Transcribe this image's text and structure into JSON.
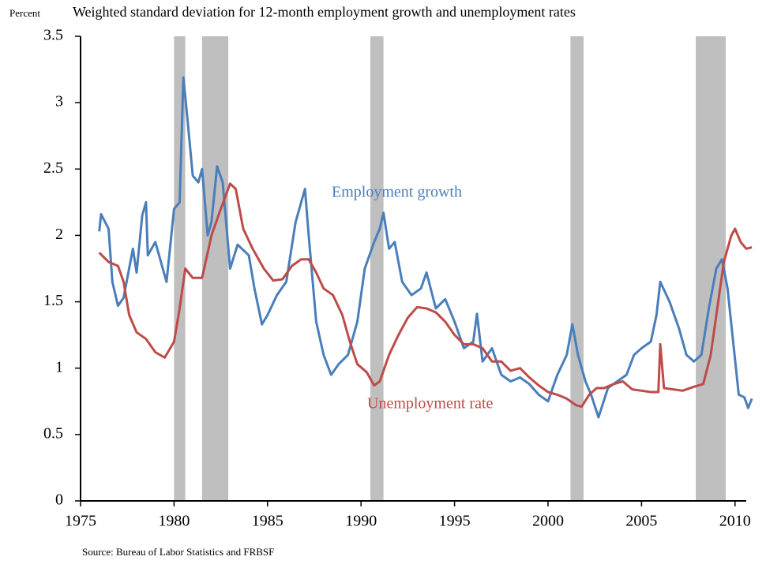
{
  "chart_data": {
    "type": "line",
    "title": "Weighted standard deviation for 12-month employment growth and unemployment rates",
    "y_label": "Percent",
    "source": "Source: Bureau of Labor Statistics and FRBSF",
    "xlim": [
      1975,
      2010.6
    ],
    "ylim": [
      0,
      3.5
    ],
    "xticks": [
      1975,
      1980,
      1985,
      1990,
      1995,
      2000,
      2005,
      2010
    ],
    "yticks": [
      0,
      0.5,
      1,
      1.5,
      2,
      2.5,
      3,
      3.5
    ],
    "shaded_color": "#bfbfbf",
    "shaded_periods": [
      [
        1980.0,
        1980.6
      ],
      [
        1981.5,
        1982.9
      ],
      [
        1990.5,
        1991.2
      ],
      [
        2001.2,
        2001.9
      ],
      [
        2007.9,
        2009.5
      ]
    ],
    "series": [
      {
        "name": "Employment growth",
        "color": "#4a7ebb",
        "x": [
          1976.0,
          1976.1,
          1976.5,
          1976.7,
          1977.0,
          1977.3,
          1977.8,
          1978.0,
          1978.3,
          1978.5,
          1978.6,
          1979.0,
          1979.3,
          1979.6,
          1980.0,
          1980.3,
          1980.5,
          1980.7,
          1981.0,
          1981.3,
          1981.5,
          1981.8,
          1982.0,
          1982.3,
          1982.6,
          1983.0,
          1983.4,
          1984.0,
          1984.3,
          1984.7,
          1985.0,
          1985.5,
          1986.0,
          1986.5,
          1987.0,
          1987.2,
          1987.6,
          1988.0,
          1988.4,
          1988.8,
          1989.3,
          1989.8,
          1990.2,
          1990.7,
          1991.0,
          1991.2,
          1991.5,
          1991.8,
          1992.2,
          1992.7,
          1993.2,
          1993.5,
          1994.0,
          1994.5,
          1995.0,
          1995.5,
          1996.0,
          1996.2,
          1996.5,
          1997.0,
          1997.5,
          1998.0,
          1998.5,
          1999.0,
          1999.5,
          2000.0,
          2000.5,
          2001.0,
          2001.3,
          2001.6,
          2002.0,
          2002.3,
          2002.7,
          2003.2,
          2003.7,
          2004.2,
          2004.6,
          2005.0,
          2005.5,
          2005.8,
          2006.0,
          2006.5,
          2007.0,
          2007.4,
          2007.8,
          2008.2,
          2008.6,
          2009.0,
          2009.3,
          2009.6,
          2009.9,
          2010.2,
          2010.5,
          2010.7,
          2010.9
        ],
        "values": [
          2.03,
          2.16,
          2.05,
          1.65,
          1.47,
          1.53,
          1.9,
          1.72,
          2.15,
          2.25,
          1.85,
          1.95,
          1.8,
          1.65,
          2.2,
          2.25,
          3.19,
          2.9,
          2.45,
          2.4,
          2.5,
          2.0,
          2.1,
          2.52,
          2.4,
          1.75,
          1.93,
          1.85,
          1.6,
          1.33,
          1.4,
          1.55,
          1.65,
          2.1,
          2.35,
          2.0,
          1.35,
          1.1,
          0.95,
          1.03,
          1.1,
          1.35,
          1.75,
          1.95,
          2.05,
          2.17,
          1.9,
          1.95,
          1.65,
          1.55,
          1.6,
          1.72,
          1.45,
          1.52,
          1.35,
          1.15,
          1.2,
          1.41,
          1.05,
          1.15,
          0.95,
          0.9,
          0.93,
          0.88,
          0.8,
          0.75,
          0.95,
          1.1,
          1.33,
          1.1,
          0.9,
          0.8,
          0.63,
          0.85,
          0.9,
          0.95,
          1.1,
          1.15,
          1.2,
          1.4,
          1.65,
          1.5,
          1.3,
          1.1,
          1.05,
          1.1,
          1.45,
          1.75,
          1.82,
          1.6,
          1.2,
          0.8,
          0.78,
          0.7,
          0.77
        ]
      },
      {
        "name": "Unemployment rate",
        "color": "#be4b48",
        "x": [
          1976.0,
          1976.5,
          1977.0,
          1977.3,
          1977.6,
          1978.0,
          1978.5,
          1979.0,
          1979.5,
          1980.0,
          1980.3,
          1980.6,
          1981.0,
          1981.5,
          1982.0,
          1982.5,
          1983.0,
          1983.3,
          1983.7,
          1984.2,
          1984.8,
          1985.3,
          1985.8,
          1986.3,
          1986.8,
          1987.2,
          1987.6,
          1988.0,
          1988.5,
          1989.0,
          1989.4,
          1989.8,
          1990.3,
          1990.7,
          1991.0,
          1991.5,
          1992.0,
          1992.5,
          1993.0,
          1993.5,
          1994.0,
          1994.5,
          1995.0,
          1995.5,
          1996.0,
          1996.5,
          1997.0,
          1997.5,
          1998.0,
          1998.5,
          1999.0,
          1999.5,
          2000.0,
          2000.5,
          2001.0,
          2001.5,
          2001.8,
          2002.2,
          2002.6,
          2003.0,
          2003.5,
          2004.0,
          2004.5,
          2005.0,
          2005.5,
          2005.9,
          2006.0,
          2006.2,
          2006.7,
          2007.2,
          2007.8,
          2008.3,
          2008.7,
          2009.0,
          2009.4,
          2009.8,
          2010.0,
          2010.3,
          2010.6,
          2010.9
        ],
        "values": [
          1.87,
          1.8,
          1.77,
          1.65,
          1.4,
          1.27,
          1.22,
          1.12,
          1.08,
          1.2,
          1.45,
          1.75,
          1.68,
          1.68,
          2.0,
          2.2,
          2.39,
          2.35,
          2.05,
          1.9,
          1.75,
          1.66,
          1.67,
          1.77,
          1.82,
          1.82,
          1.72,
          1.6,
          1.55,
          1.4,
          1.2,
          1.03,
          0.97,
          0.87,
          0.9,
          1.1,
          1.25,
          1.38,
          1.46,
          1.45,
          1.42,
          1.35,
          1.25,
          1.18,
          1.18,
          1.15,
          1.05,
          1.05,
          0.98,
          1.0,
          0.93,
          0.87,
          0.82,
          0.8,
          0.77,
          0.72,
          0.71,
          0.8,
          0.85,
          0.85,
          0.88,
          0.9,
          0.84,
          0.83,
          0.82,
          0.82,
          1.18,
          0.85,
          0.84,
          0.83,
          0.86,
          0.88,
          1.1,
          1.4,
          1.8,
          2.0,
          2.05,
          1.95,
          1.9,
          1.91
        ]
      }
    ]
  }
}
